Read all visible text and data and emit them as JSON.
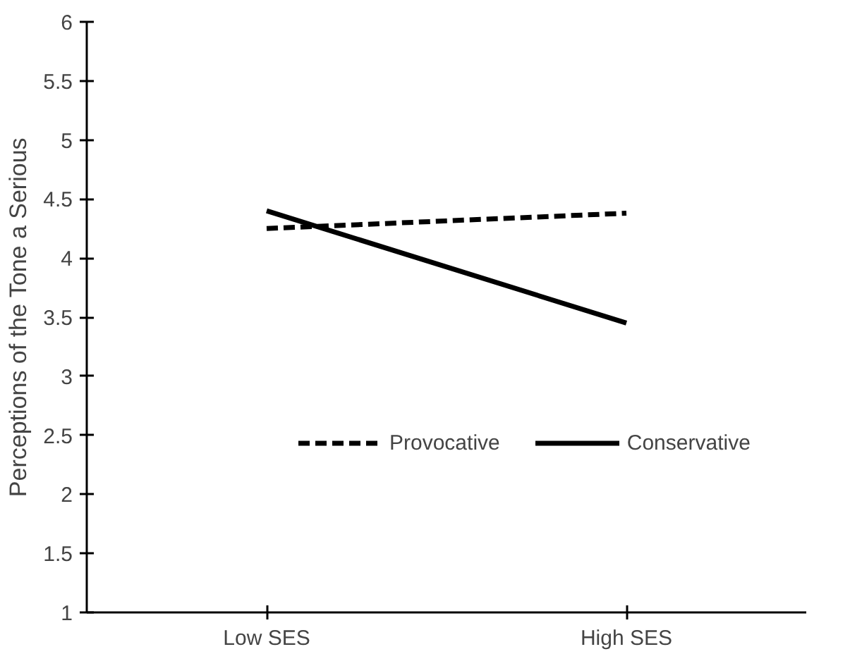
{
  "chart_data": {
    "type": "line",
    "ylabel": "Perceptions of the Tone a Serious",
    "categories": [
      "Low SES",
      "High SES"
    ],
    "series": [
      {
        "name": "Provocative",
        "color": "#000000",
        "values": [
          4.25,
          4.38
        ],
        "line_style": "dashed"
      },
      {
        "name": "Conservative",
        "color": "#000000",
        "values": [
          4.4,
          3.45
        ],
        "line_style": "solid"
      }
    ],
    "ylim": [
      1,
      6
    ],
    "yticks": [
      1,
      1.5,
      2,
      2.5,
      3,
      3.5,
      4,
      4.5,
      5,
      5.5,
      6
    ],
    "grid": false,
    "legend": "bottom",
    "marker": "none"
  }
}
